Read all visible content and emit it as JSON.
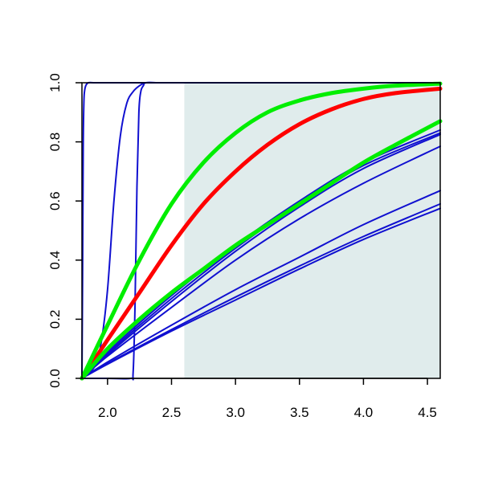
{
  "chart_data": {
    "type": "line",
    "title": "",
    "xlabel": "",
    "ylabel": "",
    "xlim": [
      1.8,
      4.6
    ],
    "ylim": [
      0.0,
      1.0
    ],
    "grid": false,
    "legend": "none",
    "x_ticks": [
      "2.0",
      "2.5",
      "3.0",
      "3.5",
      "4.0",
      "4.5"
    ],
    "y_ticks": [
      "0.0",
      "0.2",
      "0.4",
      "0.6",
      "0.8",
      "1.0"
    ],
    "shaded_region": {
      "x_from": 2.6,
      "x_to": 4.6,
      "color": "#e0ecec"
    },
    "colors": {
      "blue": "#1010d0",
      "red": "#ff0000",
      "green": "#00ee00",
      "shade": "#e0ecec",
      "axis": "#000000"
    },
    "series": [
      {
        "color": "blue",
        "width": 2,
        "x": [
          1.8,
          1.805,
          1.81,
          1.815,
          1.82,
          1.83,
          1.85,
          1.9,
          2.0,
          2.5,
          3.0,
          3.5,
          4.0,
          4.6
        ],
        "y": [
          0.0,
          0.35,
          0.78,
          0.93,
          0.97,
          0.99,
          1.0,
          1.0,
          1.0,
          1.0,
          1.0,
          1.0,
          1.0,
          1.0
        ]
      },
      {
        "color": "blue",
        "width": 2,
        "x": [
          1.8,
          1.9,
          1.95,
          2.0,
          2.05,
          2.1,
          2.15,
          2.2,
          2.25,
          2.3,
          2.4,
          2.6,
          3.0,
          4.6
        ],
        "y": [
          0.0,
          0.04,
          0.12,
          0.3,
          0.6,
          0.82,
          0.93,
          0.97,
          0.99,
          1.0,
          1.0,
          1.0,
          1.0,
          1.0
        ]
      },
      {
        "color": "blue",
        "width": 2,
        "x": [
          1.8,
          2.0,
          2.18,
          2.2,
          2.215,
          2.23,
          2.245,
          2.26,
          2.28,
          2.3,
          2.4,
          2.6,
          3.0,
          4.6
        ],
        "y": [
          0.0,
          0.0,
          0.0,
          0.02,
          0.25,
          0.65,
          0.9,
          0.97,
          0.99,
          1.0,
          1.0,
          1.0,
          1.0,
          1.0
        ]
      },
      {
        "color": "blue",
        "width": 2,
        "x": [
          1.8,
          2.0,
          2.5,
          3.0,
          3.5,
          4.0,
          4.6
        ],
        "y": [
          0.0,
          0.09,
          0.28,
          0.45,
          0.6,
          0.73,
          0.84
        ]
      },
      {
        "color": "blue",
        "width": 2,
        "x": [
          1.8,
          2.0,
          2.5,
          3.0,
          3.5,
          4.0,
          4.6
        ],
        "y": [
          0.0,
          0.085,
          0.27,
          0.44,
          0.59,
          0.72,
          0.83
        ]
      },
      {
        "color": "blue",
        "width": 2,
        "x": [
          1.8,
          2.0,
          2.5,
          3.0,
          3.5,
          4.0,
          4.6
        ],
        "y": [
          0.0,
          0.08,
          0.26,
          0.43,
          0.58,
          0.71,
          0.825
        ]
      },
      {
        "color": "blue",
        "width": 2,
        "x": [
          1.8,
          2.0,
          2.5,
          3.0,
          3.5,
          4.0,
          4.6
        ],
        "y": [
          0.0,
          0.075,
          0.24,
          0.4,
          0.54,
          0.66,
          0.785
        ]
      },
      {
        "color": "blue",
        "width": 2,
        "x": [
          1.8,
          2.0,
          2.5,
          3.0,
          3.5,
          4.0,
          4.6
        ],
        "y": [
          0.0,
          0.055,
          0.18,
          0.3,
          0.41,
          0.52,
          0.635
        ]
      },
      {
        "color": "blue",
        "width": 2,
        "x": [
          1.8,
          2.0,
          2.5,
          3.0,
          3.5,
          4.0,
          4.6
        ],
        "y": [
          0.0,
          0.05,
          0.165,
          0.275,
          0.38,
          0.48,
          0.59
        ]
      },
      {
        "color": "blue",
        "width": 2,
        "x": [
          1.8,
          2.0,
          2.5,
          3.0,
          3.5,
          4.0,
          4.6
        ],
        "y": [
          0.0,
          0.048,
          0.16,
          0.265,
          0.37,
          0.47,
          0.575
        ]
      },
      {
        "color": "red",
        "width": 5,
        "x": [
          1.8,
          2.0,
          2.25,
          2.5,
          2.75,
          3.0,
          3.25,
          3.5,
          3.75,
          4.0,
          4.25,
          4.6
        ],
        "y": [
          0.0,
          0.13,
          0.29,
          0.45,
          0.59,
          0.7,
          0.79,
          0.86,
          0.91,
          0.945,
          0.965,
          0.98
        ]
      },
      {
        "color": "green",
        "width": 5,
        "x": [
          1.8,
          2.0,
          2.25,
          2.5,
          2.75,
          3.0,
          3.25,
          3.5,
          3.75,
          4.0,
          4.25,
          4.6
        ],
        "y": [
          0.0,
          0.18,
          0.4,
          0.59,
          0.73,
          0.83,
          0.9,
          0.94,
          0.965,
          0.98,
          0.99,
          0.997
        ]
      },
      {
        "color": "green",
        "width": 5,
        "x": [
          1.8,
          2.0,
          2.25,
          2.5,
          2.75,
          3.0,
          3.25,
          3.5,
          3.75,
          4.0,
          4.25,
          4.6
        ],
        "y": [
          0.0,
          0.1,
          0.2,
          0.29,
          0.37,
          0.45,
          0.52,
          0.59,
          0.66,
          0.73,
          0.79,
          0.87
        ]
      }
    ]
  }
}
